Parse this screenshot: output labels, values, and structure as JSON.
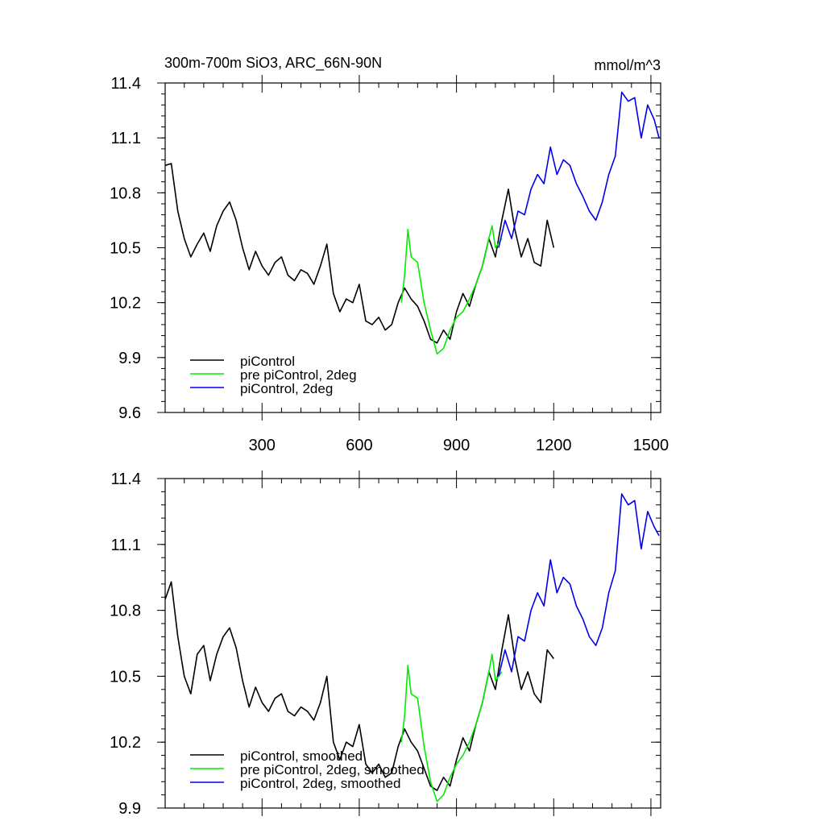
{
  "figure": {
    "title_left": "300m-700m SiO3, ARC_66N-90N",
    "title_right": "mmol/m^3"
  },
  "chart_data": [
    {
      "type": "line",
      "panel": "top",
      "title": "300m-700m SiO3, ARC_66N-90N",
      "units": "mmol/m^3",
      "xlim": [
        1,
        1530
      ],
      "ylim": [
        9.6,
        11.4
      ],
      "x_ticks": [
        300,
        600,
        900,
        1200,
        1500
      ],
      "x_tick_labels": [
        "300",
        "600",
        "900",
        "1200",
        "1500"
      ],
      "y_ticks": [
        9.6,
        9.9,
        10.2,
        10.5,
        10.8,
        11.1,
        11.4
      ],
      "y_tick_labels": [
        "9.6",
        "9.9",
        "10.2",
        "10.5",
        "10.8",
        "11.1",
        "11.4"
      ],
      "legend_position": "bottom-left",
      "series": [
        {
          "name": "piControl",
          "color": "#000000",
          "x": [
            1,
            20,
            40,
            60,
            80,
            100,
            120,
            140,
            160,
            180,
            200,
            220,
            240,
            260,
            280,
            300,
            320,
            340,
            360,
            380,
            400,
            420,
            440,
            460,
            480,
            500,
            520,
            540,
            560,
            580,
            600,
            620,
            640,
            660,
            680,
            700,
            720,
            740,
            760,
            780,
            800,
            820,
            840,
            860,
            880,
            900,
            920,
            940,
            960,
            980,
            1000,
            1020,
            1040,
            1060,
            1080,
            1100,
            1120,
            1140,
            1160,
            1180,
            1200
          ],
          "y": [
            10.95,
            10.96,
            10.7,
            10.55,
            10.45,
            10.52,
            10.58,
            10.48,
            10.62,
            10.7,
            10.75,
            10.65,
            10.5,
            10.38,
            10.48,
            10.4,
            10.35,
            10.42,
            10.45,
            10.35,
            10.32,
            10.38,
            10.36,
            10.3,
            10.4,
            10.52,
            10.25,
            10.15,
            10.22,
            10.2,
            10.3,
            10.1,
            10.08,
            10.12,
            10.05,
            10.08,
            10.2,
            10.28,
            10.22,
            10.18,
            10.1,
            10.0,
            9.98,
            10.05,
            10.0,
            10.15,
            10.25,
            10.18,
            10.3,
            10.4,
            10.55,
            10.45,
            10.65,
            10.82,
            10.6,
            10.45,
            10.55,
            10.42,
            10.4,
            10.65,
            10.5
          ]
        },
        {
          "name": "pre piControl, 2deg",
          "color": "#00ee00",
          "x": [
            730,
            740,
            750,
            760,
            780,
            800,
            820,
            840,
            860,
            880,
            900,
            920,
            940,
            960,
            980,
            1000,
            1010,
            1020,
            1040
          ],
          "y": [
            10.2,
            10.35,
            10.6,
            10.45,
            10.42,
            10.2,
            10.05,
            9.92,
            9.95,
            10.05,
            10.12,
            10.15,
            10.22,
            10.3,
            10.4,
            10.55,
            10.62,
            10.5,
            10.55
          ]
        },
        {
          "name": "piControl, 2deg",
          "color": "#0000ee",
          "x": [
            1030,
            1050,
            1070,
            1090,
            1110,
            1130,
            1150,
            1170,
            1190,
            1210,
            1230,
            1250,
            1270,
            1290,
            1310,
            1330,
            1350,
            1370,
            1390,
            1410,
            1430,
            1450,
            1470,
            1490,
            1510,
            1525
          ],
          "y": [
            10.5,
            10.65,
            10.55,
            10.7,
            10.68,
            10.82,
            10.9,
            10.85,
            11.05,
            10.9,
            10.98,
            10.95,
            10.85,
            10.78,
            10.7,
            10.65,
            10.75,
            10.9,
            11.0,
            11.35,
            11.3,
            11.32,
            11.1,
            11.28,
            11.2,
            11.1
          ]
        }
      ]
    },
    {
      "type": "line",
      "panel": "bottom",
      "xlim": [
        1,
        1530
      ],
      "ylim": [
        9.9,
        11.4
      ],
      "x_ticks": [
        300,
        600,
        900,
        1200,
        1500
      ],
      "y_ticks": [
        9.9,
        10.2,
        10.5,
        10.8,
        11.1,
        11.4
      ],
      "y_tick_labels": [
        "9.9",
        "10.2",
        "10.5",
        "10.8",
        "11.1",
        "11.4"
      ],
      "legend_position": "bottom-left",
      "series": [
        {
          "name": "piControl, smoothed",
          "color": "#000000",
          "x": [
            1,
            20,
            40,
            60,
            80,
            100,
            120,
            140,
            160,
            180,
            200,
            220,
            240,
            260,
            280,
            300,
            320,
            340,
            360,
            380,
            400,
            420,
            440,
            460,
            480,
            500,
            520,
            540,
            560,
            580,
            600,
            620,
            640,
            660,
            680,
            700,
            720,
            740,
            760,
            780,
            800,
            820,
            840,
            860,
            880,
            900,
            920,
            940,
            960,
            980,
            1000,
            1020,
            1040,
            1060,
            1080,
            1100,
            1120,
            1140,
            1160,
            1180,
            1200
          ],
          "y": [
            10.85,
            10.93,
            10.68,
            10.5,
            10.42,
            10.6,
            10.64,
            10.48,
            10.6,
            10.68,
            10.72,
            10.63,
            10.48,
            10.36,
            10.45,
            10.38,
            10.34,
            10.4,
            10.42,
            10.34,
            10.32,
            10.36,
            10.34,
            10.3,
            10.38,
            10.5,
            10.2,
            10.12,
            10.2,
            10.18,
            10.28,
            10.1,
            10.06,
            10.1,
            10.04,
            10.06,
            10.18,
            10.26,
            10.2,
            10.16,
            10.08,
            10.0,
            9.98,
            10.04,
            10.0,
            10.12,
            10.22,
            10.16,
            10.28,
            10.38,
            10.52,
            10.44,
            10.62,
            10.78,
            10.58,
            10.44,
            10.52,
            10.42,
            10.38,
            10.62,
            10.58
          ]
        },
        {
          "name": "pre piControl, 2deg, smoothed",
          "color": "#00ee00",
          "x": [
            730,
            740,
            750,
            760,
            780,
            800,
            820,
            840,
            860,
            880,
            900,
            920,
            940,
            960,
            980,
            1000,
            1010,
            1020,
            1040
          ],
          "y": [
            10.2,
            10.32,
            10.55,
            10.42,
            10.4,
            10.18,
            10.02,
            9.93,
            9.96,
            10.04,
            10.1,
            10.14,
            10.2,
            10.28,
            10.38,
            10.52,
            10.6,
            10.48,
            10.52
          ]
        },
        {
          "name": "piControl, 2deg, smoothed",
          "color": "#0000ee",
          "x": [
            1030,
            1050,
            1070,
            1090,
            1110,
            1130,
            1150,
            1170,
            1190,
            1210,
            1230,
            1250,
            1270,
            1290,
            1310,
            1330,
            1350,
            1370,
            1390,
            1410,
            1430,
            1450,
            1470,
            1490,
            1510,
            1525
          ],
          "y": [
            10.5,
            10.62,
            10.52,
            10.68,
            10.66,
            10.8,
            10.88,
            10.82,
            11.03,
            10.88,
            10.95,
            10.92,
            10.82,
            10.76,
            10.68,
            10.64,
            10.72,
            10.88,
            10.98,
            11.33,
            11.28,
            11.3,
            11.08,
            11.25,
            11.18,
            11.14
          ]
        }
      ]
    }
  ]
}
